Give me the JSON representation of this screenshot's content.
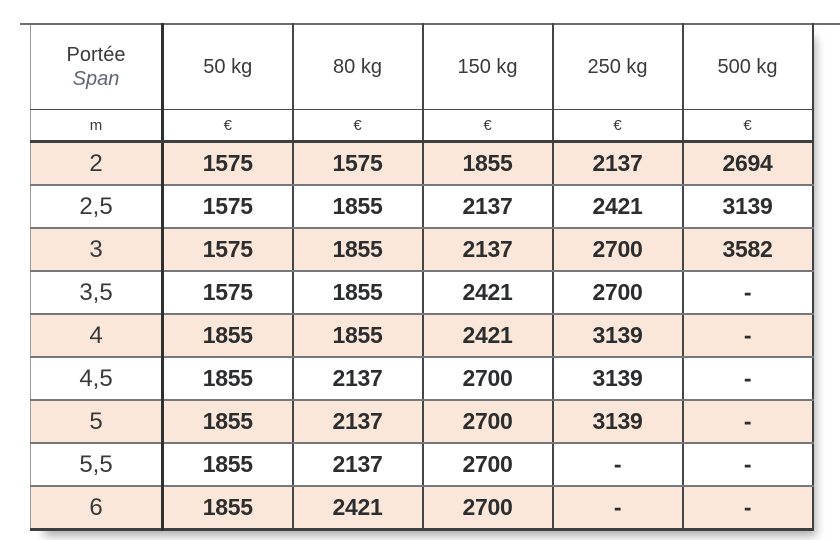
{
  "table": {
    "header": {
      "col0_line1": "Portée",
      "col0_line2": "Span",
      "weights": [
        "50 kg",
        "80 kg",
        "150 kg",
        "250 kg",
        "500 kg"
      ],
      "units": [
        "m",
        "€",
        "€",
        "€",
        "€",
        "€"
      ]
    },
    "rows": [
      {
        "span": "2",
        "values": [
          "1575",
          "1575",
          "1855",
          "2137",
          "2694"
        ]
      },
      {
        "span": "2,5",
        "values": [
          "1575",
          "1855",
          "2137",
          "2421",
          "3139"
        ]
      },
      {
        "span": "3",
        "values": [
          "1575",
          "1855",
          "2137",
          "2700",
          "3582"
        ]
      },
      {
        "span": "3,5",
        "values": [
          "1575",
          "1855",
          "2421",
          "2700",
          "-"
        ]
      },
      {
        "span": "4",
        "values": [
          "1855",
          "1855",
          "2421",
          "3139",
          "-"
        ]
      },
      {
        "span": "4,5",
        "values": [
          "1855",
          "2137",
          "2700",
          "3139",
          "-"
        ]
      },
      {
        "span": "5",
        "values": [
          "1855",
          "2137",
          "2700",
          "3139",
          "-"
        ]
      },
      {
        "span": "5,5",
        "values": [
          "1855",
          "2137",
          "2700",
          "-",
          "-"
        ]
      },
      {
        "span": "6",
        "values": [
          "1855",
          "2421",
          "2700",
          "-",
          "-"
        ]
      }
    ],
    "colors": {
      "zebra_row": "#fbe7d9",
      "text_dark": "#38393b",
      "span_italic": "#5d6773",
      "grid_dark": "#454648",
      "grid_gray": "#77787b"
    }
  }
}
